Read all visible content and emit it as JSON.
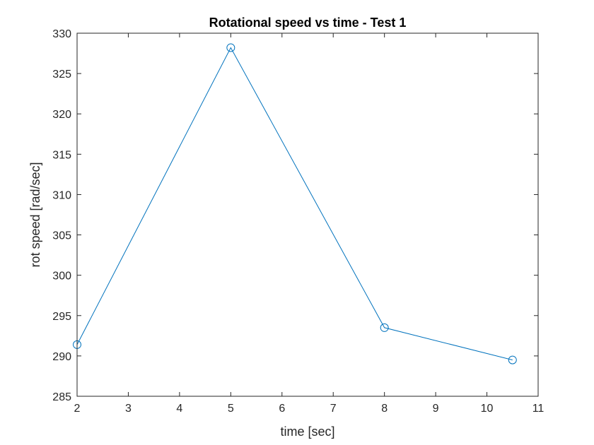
{
  "chart_data": {
    "type": "line",
    "title": "Rotational speed vs time - Test 1",
    "xlabel": "time [sec]",
    "ylabel": "rot speed [rad/sec]",
    "xlim": [
      2,
      11
    ],
    "ylim": [
      285,
      330
    ],
    "xticks": [
      2,
      3,
      4,
      5,
      6,
      7,
      8,
      9,
      10,
      11
    ],
    "yticks": [
      285,
      290,
      295,
      300,
      305,
      310,
      315,
      320,
      325,
      330
    ],
    "grid": false,
    "legend": "none",
    "series": [
      {
        "marker": "circle",
        "color": "#0072BD",
        "x": [
          2,
          5,
          8,
          10.5
        ],
        "y": [
          291.4,
          328.2,
          293.5,
          289.5
        ]
      }
    ]
  }
}
